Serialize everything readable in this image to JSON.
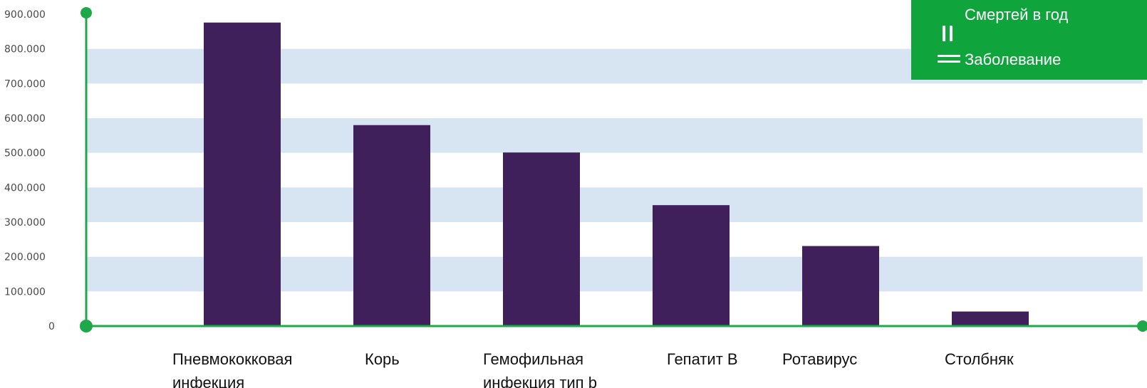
{
  "chart_data": {
    "type": "bar",
    "title": "",
    "xlabel": "",
    "ylabel": "",
    "categories": [
      [
        "Пневмококковая",
        "инфекция"
      ],
      [
        "Корь"
      ],
      [
        "Гемофильная",
        "инфекция тип b"
      ],
      [
        "Гепатит В"
      ],
      [
        "Ротавирус"
      ],
      [
        "Столбняк"
      ]
    ],
    "values": [
      876000,
      580000,
      501000,
      349000,
      231000,
      42000
    ],
    "ylim": [
      0,
      900000
    ],
    "yticks": [
      0,
      100000,
      200000,
      300000,
      400000,
      500000,
      600000,
      700000,
      800000,
      900000
    ],
    "ytick_labels": [
      "0",
      "100.000",
      "200.000",
      "300.000",
      "400.000",
      "500.000",
      "600.000",
      "700.000",
      "800.000",
      "900.000"
    ],
    "grid": "alternating horizontal bands",
    "legend": {
      "placement": "top-right",
      "entries": [
        "Смертей в год",
        "Заболевание"
      ]
    },
    "colors": {
      "bar": "#40205a",
      "band": "#d6e5f1",
      "axis": "#1ea84a",
      "legend_bg": "#0fa43c",
      "legend_text": "#ffffff"
    }
  }
}
